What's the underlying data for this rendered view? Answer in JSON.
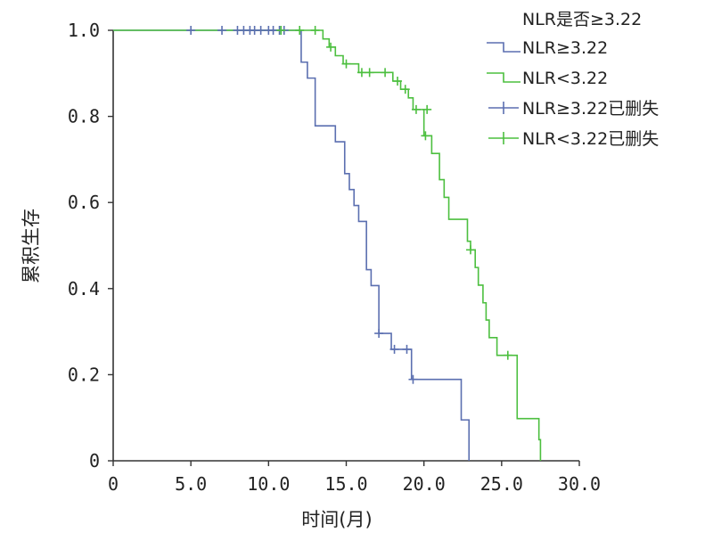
{
  "chart_data": {
    "type": "line",
    "title": "",
    "xlabel": "时间(月)",
    "ylabel": "累积生存",
    "xlim": [
      0,
      30
    ],
    "ylim": [
      0,
      1
    ],
    "x_ticks": [
      0,
      5,
      10,
      15,
      20,
      25,
      30
    ],
    "x_tick_labels": [
      "0",
      "5.0",
      "10.0",
      "15.0",
      "20.0",
      "25.0",
      "30.0"
    ],
    "y_ticks": [
      0,
      0.2,
      0.4,
      0.6,
      0.8,
      1.0
    ],
    "y_tick_labels": [
      "0",
      "0.2",
      "0.4",
      "0.6",
      "0.8",
      "1.0"
    ],
    "grid": false,
    "legend": {
      "title": "NLR是否≥3.22",
      "placement": "top-right",
      "entries": [
        {
          "label": "NLR≥3.22",
          "kind": "line",
          "color": "#5b6fb0"
        },
        {
          "label": "NLR<3.22",
          "kind": "line",
          "color": "#4cbf3f"
        },
        {
          "label": "NLR≥3.22已删失",
          "kind": "censor",
          "color": "#5b6fb0"
        },
        {
          "label": "NLR<3.22已删失",
          "kind": "censor",
          "color": "#4cbf3f"
        }
      ]
    },
    "series": [
      {
        "name": "NLR≥3.22",
        "color": "#5b6fb0",
        "steps": [
          [
            0,
            1.0
          ],
          [
            12.1,
            0.926
          ],
          [
            12.5,
            0.889
          ],
          [
            13.0,
            0.778
          ],
          [
            14.3,
            0.741
          ],
          [
            14.9,
            0.667
          ],
          [
            15.2,
            0.63
          ],
          [
            15.5,
            0.593
          ],
          [
            15.8,
            0.556
          ],
          [
            16.3,
            0.444
          ],
          [
            16.6,
            0.407
          ],
          [
            17.1,
            0.296
          ],
          [
            17.9,
            0.259
          ],
          [
            19.2,
            0.189
          ],
          [
            22.4,
            0.095
          ],
          [
            22.9,
            0.0
          ]
        ],
        "censored": [
          [
            5.0,
            1.0
          ],
          [
            7.0,
            1.0
          ],
          [
            8.0,
            1.0
          ],
          [
            8.4,
            1.0
          ],
          [
            8.8,
            1.0
          ],
          [
            9.1,
            1.0
          ],
          [
            9.5,
            1.0
          ],
          [
            10.0,
            1.0
          ],
          [
            10.3,
            1.0
          ],
          [
            10.7,
            1.0
          ],
          [
            11.0,
            1.0
          ],
          [
            17.1,
            0.296
          ],
          [
            18.1,
            0.259
          ],
          [
            18.9,
            0.259
          ],
          [
            19.3,
            0.189
          ]
        ]
      },
      {
        "name": "NLR<3.22",
        "color": "#4cbf3f",
        "steps": [
          [
            0,
            1.0
          ],
          [
            13.5,
            0.98
          ],
          [
            13.9,
            0.961
          ],
          [
            14.3,
            0.941
          ],
          [
            14.8,
            0.922
          ],
          [
            15.8,
            0.902
          ],
          [
            18.0,
            0.882
          ],
          [
            18.5,
            0.863
          ],
          [
            19.0,
            0.843
          ],
          [
            19.3,
            0.816
          ],
          [
            20.0,
            0.755
          ],
          [
            20.5,
            0.714
          ],
          [
            21.0,
            0.653
          ],
          [
            21.3,
            0.612
          ],
          [
            21.6,
            0.561
          ],
          [
            22.8,
            0.51
          ],
          [
            23.0,
            0.49
          ],
          [
            23.3,
            0.449
          ],
          [
            23.5,
            0.408
          ],
          [
            23.8,
            0.367
          ],
          [
            24.0,
            0.327
          ],
          [
            24.2,
            0.286
          ],
          [
            24.7,
            0.245
          ],
          [
            26.0,
            0.098
          ],
          [
            27.4,
            0.049
          ],
          [
            27.5,
            0.0
          ]
        ],
        "censored": [
          [
            10.8,
            1.0
          ],
          [
            12.0,
            1.0
          ],
          [
            13.0,
            1.0
          ],
          [
            14.0,
            0.961
          ],
          [
            15.0,
            0.922
          ],
          [
            16.0,
            0.902
          ],
          [
            16.5,
            0.902
          ],
          [
            17.5,
            0.902
          ],
          [
            18.3,
            0.882
          ],
          [
            18.8,
            0.863
          ],
          [
            19.5,
            0.816
          ],
          [
            20.2,
            0.816
          ],
          [
            20.1,
            0.755
          ],
          [
            23.0,
            0.49
          ],
          [
            25.4,
            0.245
          ]
        ]
      }
    ]
  }
}
